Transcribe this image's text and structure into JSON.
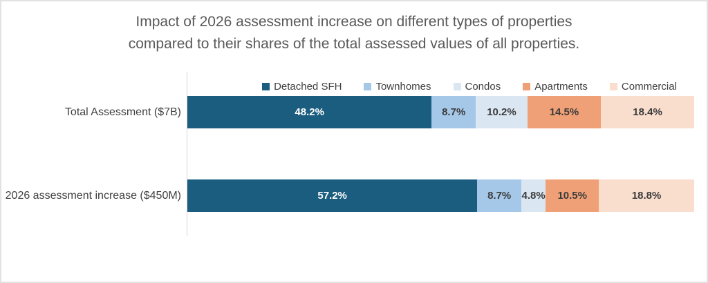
{
  "chart_data": {
    "type": "bar",
    "variant": "horizontal-stacked",
    "title_lines": [
      "Impact of 2026 assessment increase on different types of properties",
      "compared to their shares of the total assessed values of all properties."
    ],
    "categories": [
      "Total Assessment ($7B)",
      "2026 assessment increase ($450M)"
    ],
    "series": [
      {
        "name": "Detached SFH",
        "color": "#1B5D7E",
        "label_color": "#FFFFFF",
        "values": [
          48.2,
          57.2
        ]
      },
      {
        "name": "Townhomes",
        "color": "#A5C8E9",
        "label_color": "#3B3B3B",
        "values": [
          8.7,
          8.7
        ]
      },
      {
        "name": "Condos",
        "color": "#DBE6F3",
        "label_color": "#3B3B3B",
        "values": [
          10.2,
          4.8
        ]
      },
      {
        "name": "Apartments",
        "color": "#F0A076",
        "label_color": "#3B3B3B",
        "values": [
          14.5,
          10.5
        ]
      },
      {
        "name": "Commercial",
        "color": "#F9DDCD",
        "label_color": "#3B3B3B",
        "values": [
          18.4,
          18.8
        ]
      }
    ],
    "data_labels": [
      [
        "48.2%",
        "8.7%",
        "10.2%",
        "14.5%",
        "18.4%"
      ],
      [
        "57.2%",
        "8.7%",
        "4.8%",
        "10.5%",
        "18.8%"
      ]
    ],
    "value_suffix": "%",
    "xlim": [
      0,
      100
    ],
    "legend_position": "top",
    "grid": false,
    "colors": {
      "title_text": "#595959",
      "label_text": "#404040",
      "axis_line": "#D6D6D6",
      "background": "#FFFFFF"
    }
  }
}
